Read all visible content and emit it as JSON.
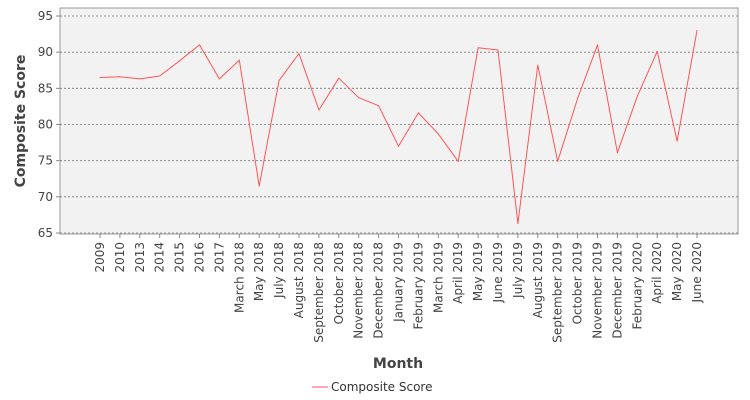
{
  "chart_data": {
    "type": "line",
    "title": "",
    "xlabel": "Month",
    "ylabel": "Composite Score",
    "ylim": [
      65,
      95
    ],
    "yticks": [
      65,
      70,
      75,
      80,
      85,
      90,
      95
    ],
    "grid": true,
    "legend_position": "bottom",
    "categories": [
      "2009",
      "2010",
      "2013",
      "2014",
      "2015",
      "2016",
      "2017",
      "March 2018",
      "May 2018",
      "July 2018",
      "August 2018",
      "September 2018",
      "October 2018",
      "November 2018",
      "December 2018",
      "January 2019",
      "February 2019",
      "March 2019",
      "April 2019",
      "May 2019",
      "June 2019",
      "July 2019",
      "August 2019",
      "September 2019",
      "October 2019",
      "November 2019",
      "December 2019",
      "February 2020",
      "April 2020",
      "May 2020",
      "June 2020"
    ],
    "series": [
      {
        "name": "Composite Score",
        "color": "#ff5555",
        "values": [
          86.5,
          86.6,
          86.3,
          86.7,
          88.8,
          91.0,
          86.3,
          88.9,
          71.5,
          86.1,
          89.8,
          82.0,
          86.4,
          83.7,
          82.6,
          77.0,
          81.6,
          78.7,
          74.9,
          90.6,
          90.3,
          66.3,
          88.2,
          74.9,
          83.6,
          91.0,
          76.1,
          83.9,
          90.1,
          77.7,
          93.0
        ]
      }
    ]
  },
  "colors": {
    "plot_background": "#f2f2f2",
    "grid": "#777777",
    "axis": "#888888",
    "text": "#444444"
  }
}
